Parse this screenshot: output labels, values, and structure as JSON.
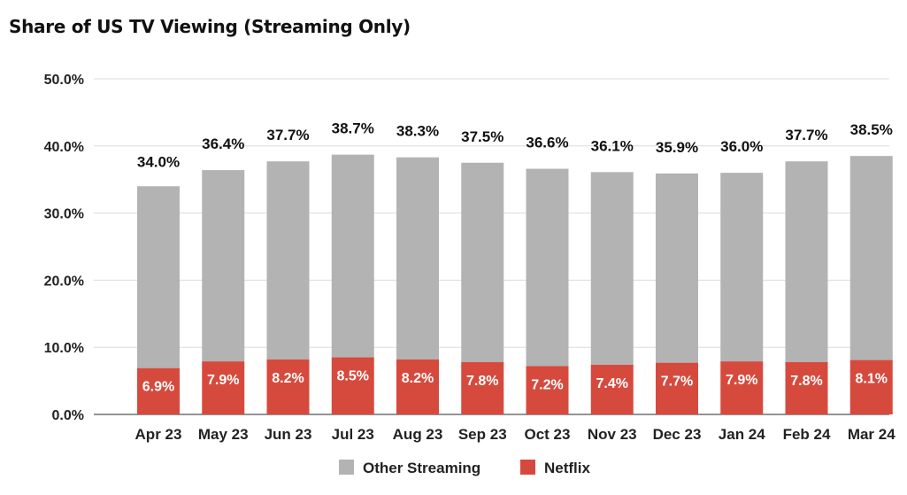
{
  "chart_data": {
    "type": "bar",
    "stacked": true,
    "title": "Share of US TV Viewing (Streaming Only)",
    "categories": [
      "Apr 23",
      "May 23",
      "Jun 23",
      "Jul 23",
      "Aug 23",
      "Sep 23",
      "Oct 23",
      "Nov 23",
      "Dec 23",
      "Jan 24",
      "Feb 24",
      "Mar 24"
    ],
    "totals": [
      34.0,
      36.4,
      37.7,
      38.7,
      38.3,
      37.5,
      36.6,
      36.1,
      35.9,
      36.0,
      37.7,
      38.5
    ],
    "series": [
      {
        "name": "Netflix",
        "color": "#d64a3d",
        "values": [
          6.9,
          7.9,
          8.2,
          8.5,
          8.2,
          7.8,
          7.2,
          7.4,
          7.7,
          7.9,
          7.8,
          8.1
        ]
      },
      {
        "name": "Other Streaming",
        "color": "#b3b3b3",
        "values": [
          27.1,
          28.5,
          29.5,
          30.2,
          30.1,
          29.7,
          29.4,
          28.7,
          28.2,
          28.1,
          29.9,
          30.4
        ]
      }
    ],
    "ylim": [
      0,
      50
    ],
    "yticks": [
      "0.0%",
      "10.0%",
      "20.0%",
      "30.0%",
      "40.0%",
      "50.0%"
    ],
    "legend_order": [
      "Other Streaming",
      "Netflix"
    ],
    "legend_position": "bottom",
    "grid": true,
    "gridline_color": "#dcdcdc"
  }
}
